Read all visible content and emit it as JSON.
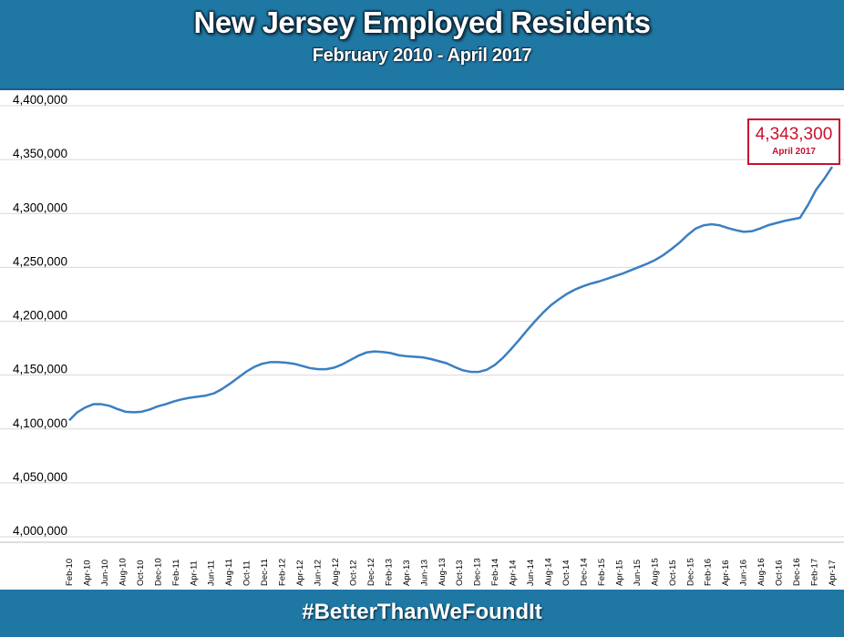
{
  "header": {
    "title": "New Jersey Employed Residents",
    "subtitle": "February 2010 - April 2017",
    "background": "#1f78a4"
  },
  "footer": {
    "hashtag": "#BetterThanWeFoundIt"
  },
  "callout": {
    "value": "4,343,300",
    "label": "April 2017",
    "color": "#c8102e"
  },
  "chart_data": {
    "type": "line",
    "title": "New Jersey Employed Residents",
    "subtitle": "February 2010 - April 2017",
    "xlabel": "",
    "ylabel": "",
    "ylim": [
      4000000,
      4400000
    ],
    "grid": true,
    "line_color": "#3a7fc1",
    "y_ticks": [
      "4,000,000",
      "4,050,000",
      "4,100,000",
      "4,150,000",
      "4,200,000",
      "4,250,000",
      "4,300,000",
      "4,350,000",
      "4,400,000"
    ],
    "x_tick_labels": [
      "Feb-10",
      "Apr-10",
      "Jun-10",
      "Aug-10",
      "Oct-10",
      "Dec-10",
      "Feb-11",
      "Apr-11",
      "Jun-11",
      "Aug-11",
      "Oct-11",
      "Dec-11",
      "Feb-12",
      "Apr-12",
      "Jun-12",
      "Aug-12",
      "Oct-12",
      "Dec-12",
      "Feb-13",
      "Apr-13",
      "Jun-13",
      "Aug-13",
      "Oct-13",
      "Dec-13",
      "Feb-14",
      "Apr-14",
      "Jun-14",
      "Aug-14",
      "Oct-14",
      "Dec-14",
      "Feb-15",
      "Apr-15",
      "Jun-15",
      "Aug-15",
      "Oct-15",
      "Dec-15",
      "Feb-16",
      "Apr-16",
      "Jun-16",
      "Aug-16",
      "Oct-16",
      "Dec-16",
      "Feb-17",
      "Apr-17"
    ],
    "series": [
      {
        "values": [
          4108000,
          4115500,
          4120000,
          4123000,
          4123000,
          4121500,
          4118500,
          4116000,
          4115500,
          4116000,
          4118000,
          4121000,
          4123000,
          4125500,
          4127500,
          4129000,
          4130000,
          4131000,
          4133000,
          4137000,
          4142000,
          4147500,
          4153000,
          4157500,
          4160500,
          4162000,
          4162000,
          4161500,
          4160500,
          4158500,
          4156500,
          4155500,
          4155500,
          4157000,
          4160000,
          4164000,
          4168000,
          4171000,
          4172000,
          4171500,
          4170500,
          4168500,
          4167500,
          4167000,
          4166500,
          4165000,
          4163000,
          4161000,
          4157500,
          4154500,
          4153000,
          4153000,
          4155000,
          4159500,
          4166000,
          4174000,
          4182500,
          4191500,
          4200000,
          4208000,
          4215000,
          4220500,
          4225500,
          4229500,
          4232500,
          4235000,
          4237000,
          4239500,
          4242000,
          4244500,
          4247500,
          4250500,
          4253500,
          4257000,
          4261500,
          4267000,
          4273000,
          4280000,
          4286000,
          4289000,
          4290000,
          4289000,
          4286500,
          4284500,
          4283000,
          4283500,
          4286000,
          4289000,
          4291000,
          4293000,
          4294500,
          4296000,
          4308000,
          4322000,
          4332000,
          4343300
        ]
      }
    ]
  }
}
